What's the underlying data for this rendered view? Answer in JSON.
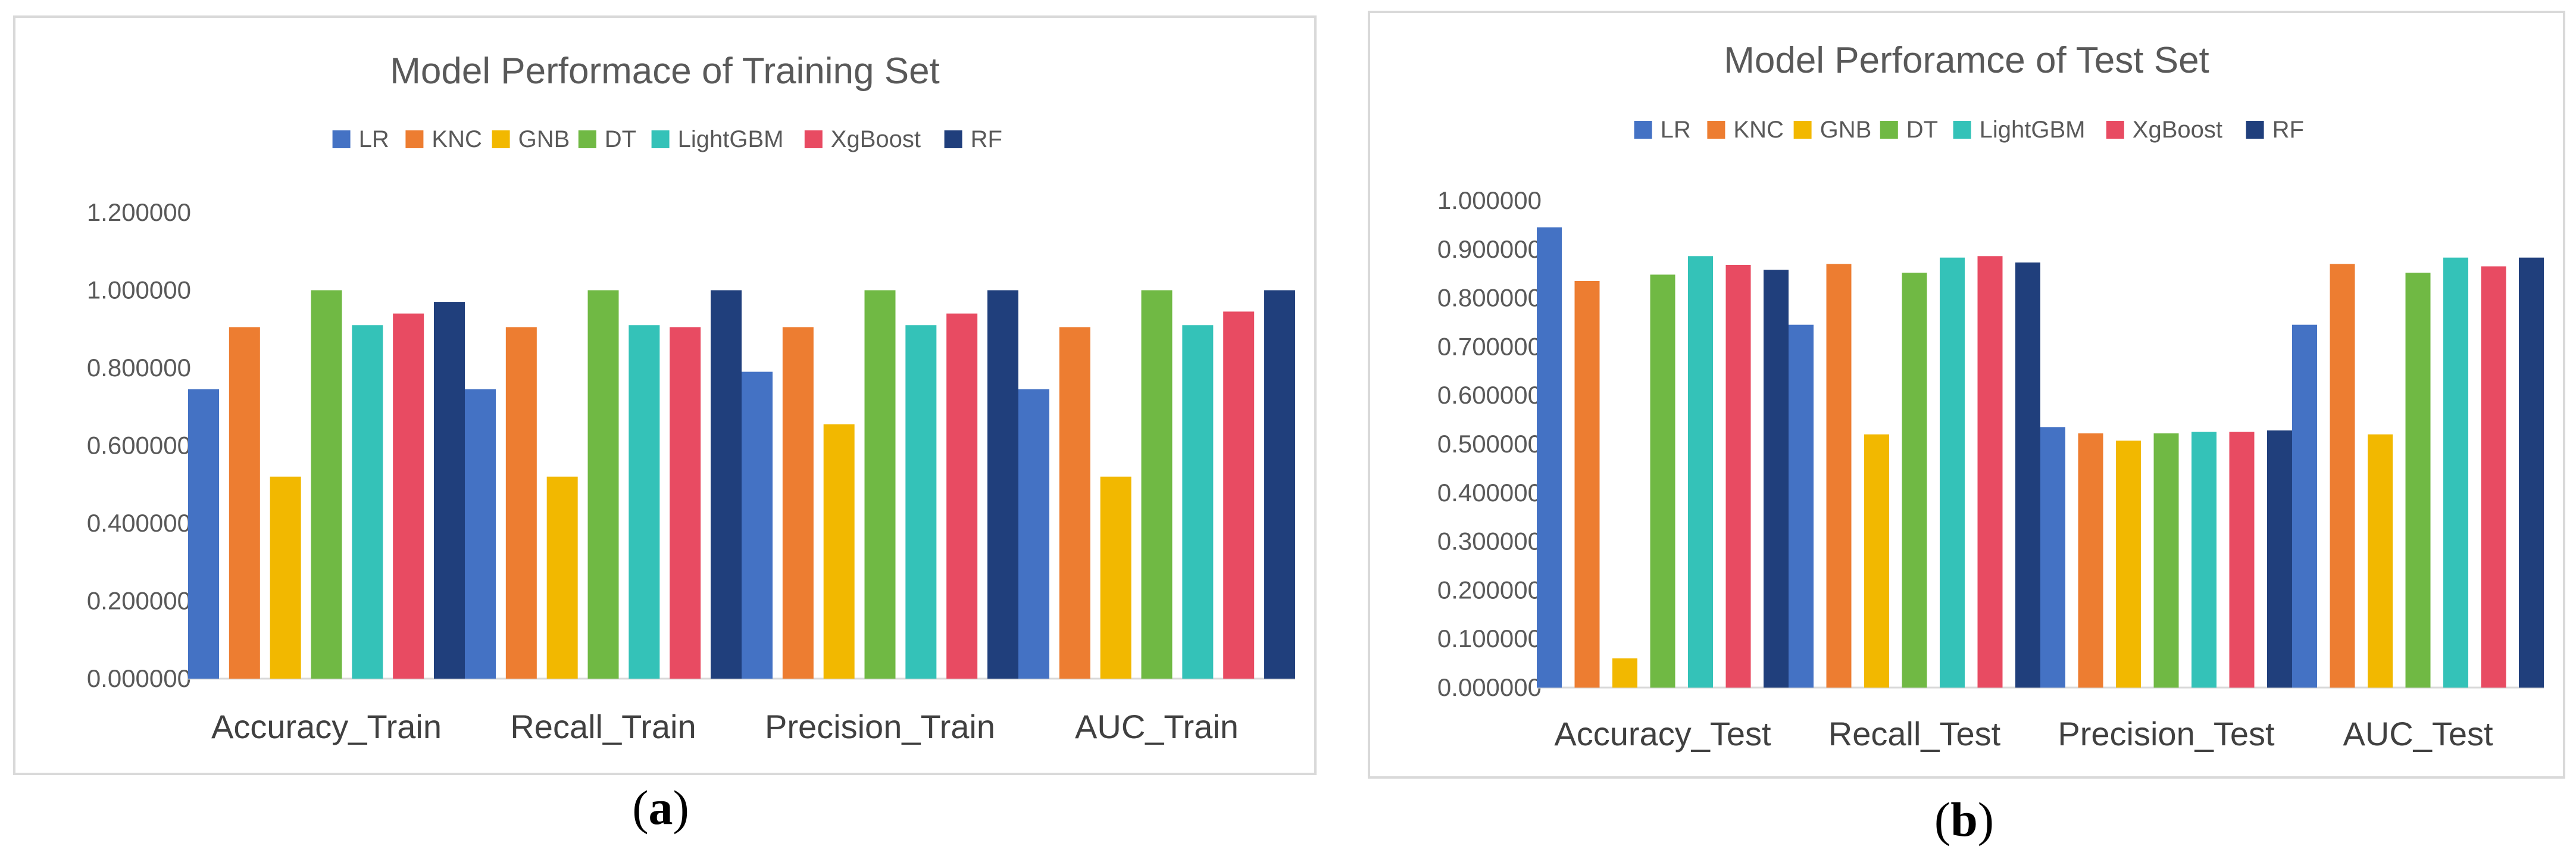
{
  "captions": [
    {
      "open": "(",
      "letter": "a",
      "close": ")"
    },
    {
      "open": "(",
      "letter": "b",
      "close": ")"
    }
  ],
  "chart_data": [
    {
      "type": "bar",
      "title": "Model Performace of Training Set",
      "legend_position": "top",
      "grid": false,
      "categories": [
        "Accuracy_Train",
        "Recall_Train",
        "Precision_Train",
        "AUC_Train"
      ],
      "ylim": [
        0,
        1.2
      ],
      "yticks": [
        0,
        0.2,
        0.4,
        0.6,
        0.8,
        1.0,
        1.2
      ],
      "ytick_labels": [
        "0.000000",
        "0.200000",
        "0.400000",
        "0.600000",
        "0.800000",
        "1.000000",
        "1.200000"
      ],
      "series": [
        {
          "name": "LR",
          "color": "#4472C4",
          "values": [
            0.745,
            0.745,
            0.79,
            0.745
          ]
        },
        {
          "name": "KNC",
          "color": "#ED7D31",
          "values": [
            0.905,
            0.905,
            0.905,
            0.905
          ]
        },
        {
          "name": "GNB",
          "color": "#F2B800",
          "values": [
            0.52,
            0.52,
            0.655,
            0.52
          ]
        },
        {
          "name": "DT",
          "color": "#70B944",
          "values": [
            1.0,
            1.0,
            1.0,
            1.0
          ]
        },
        {
          "name": "LightGBM",
          "color": "#34C2B8",
          "values": [
            0.91,
            0.91,
            0.91,
            0.91
          ]
        },
        {
          "name": "XgBoost",
          "color": "#E84B62",
          "values": [
            0.94,
            0.905,
            0.94,
            0.945
          ]
        },
        {
          "name": "RF",
          "color": "#203F7C",
          "values": [
            0.97,
            1.0,
            1.0,
            1.0
          ]
        }
      ]
    },
    {
      "type": "bar",
      "title": "Model Perforamce of Test Set",
      "legend_position": "top",
      "grid": false,
      "categories": [
        "Accuracy_Test",
        "Recall_Test",
        "Precision_Test",
        "AUC_Test"
      ],
      "ylim": [
        0,
        1.0
      ],
      "yticks": [
        0,
        0.1,
        0.2,
        0.3,
        0.4,
        0.5,
        0.6,
        0.7,
        0.8,
        0.9,
        1.0
      ],
      "ytick_labels": [
        "0.000000",
        "0.100000",
        "0.200000",
        "0.300000",
        "0.400000",
        "0.500000",
        "0.600000",
        "0.700000",
        "0.800000",
        "0.900000",
        "1.000000"
      ],
      "series": [
        {
          "name": "LR",
          "color": "#4472C4",
          "values": [
            0.945,
            0.745,
            0.535,
            0.745
          ]
        },
        {
          "name": "KNC",
          "color": "#ED7D31",
          "values": [
            0.835,
            0.87,
            0.522,
            0.87
          ]
        },
        {
          "name": "GNB",
          "color": "#F2B800",
          "values": [
            0.06,
            0.52,
            0.507,
            0.52
          ]
        },
        {
          "name": "DT",
          "color": "#70B944",
          "values": [
            0.848,
            0.852,
            0.522,
            0.852
          ]
        },
        {
          "name": "LightGBM",
          "color": "#34C2B8",
          "values": [
            0.886,
            0.883,
            0.525,
            0.883
          ]
        },
        {
          "name": "XgBoost",
          "color": "#E84B62",
          "values": [
            0.868,
            0.886,
            0.525,
            0.865
          ]
        },
        {
          "name": "RF",
          "color": "#203F7C",
          "values": [
            0.858,
            0.873,
            0.528,
            0.883
          ]
        }
      ]
    }
  ]
}
